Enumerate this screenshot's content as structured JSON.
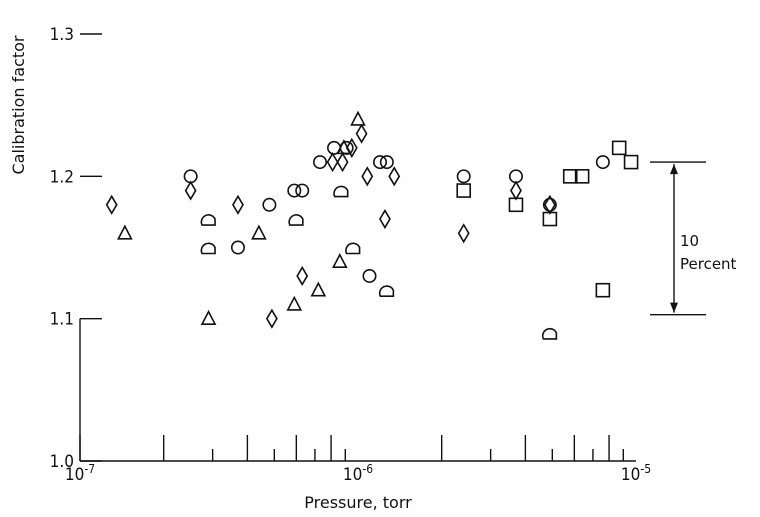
{
  "chart_data": {
    "type": "scatter",
    "xlabel": "Pressure, torr",
    "ylabel": "Calibration factor",
    "xscale": "log",
    "xlim": [
      1e-07,
      1e-05
    ],
    "ylim": [
      1.0,
      1.3
    ],
    "grid": false,
    "x_ticks": [
      {
        "value": 1e-07,
        "base": "10",
        "exp": "-7"
      },
      {
        "value": 1e-06,
        "base": "10",
        "exp": "-6"
      },
      {
        "value": 1e-05,
        "base": "10",
        "exp": "-5"
      }
    ],
    "y_ticks": [
      {
        "value": 1.0,
        "label": "1.0"
      },
      {
        "value": 1.1,
        "label": "1.1"
      },
      {
        "value": 1.2,
        "label": "1.2"
      },
      {
        "value": 1.3,
        "label": "1.3"
      }
    ],
    "series": [
      {
        "marker": "circle",
        "points": [
          [
            2.5e-07,
            1.2
          ],
          [
            3.7e-07,
            1.15
          ],
          [
            4.8e-07,
            1.18
          ],
          [
            5.9e-07,
            1.19
          ],
          [
            6.3e-07,
            1.19
          ],
          [
            7.3e-07,
            1.21
          ],
          [
            8.2e-07,
            1.22
          ],
          [
            9.1e-07,
            1.22
          ],
          [
            1.1e-06,
            1.13
          ],
          [
            1.2e-06,
            1.21
          ],
          [
            1.27e-06,
            1.21
          ],
          [
            2.4e-06,
            1.2
          ],
          [
            3.7e-06,
            1.2
          ],
          [
            4.9e-06,
            1.18
          ],
          [
            7.6e-06,
            1.21
          ]
        ]
      },
      {
        "marker": "diamond",
        "points": [
          [
            1.3e-07,
            1.18
          ],
          [
            2.5e-07,
            1.19
          ],
          [
            3.7e-07,
            1.18
          ],
          [
            4.9e-07,
            1.1
          ],
          [
            6.3e-07,
            1.13
          ],
          [
            8.1e-07,
            1.21
          ],
          [
            8.8e-07,
            1.21
          ],
          [
            9.5e-07,
            1.22
          ],
          [
            1.03e-06,
            1.23
          ],
          [
            1.08e-06,
            1.2
          ],
          [
            1.25e-06,
            1.17
          ],
          [
            1.35e-06,
            1.2
          ],
          [
            2.4e-06,
            1.16
          ],
          [
            3.7e-06,
            1.19
          ],
          [
            4.9e-06,
            1.18
          ]
        ]
      },
      {
        "marker": "triangle",
        "points": [
          [
            1.45e-07,
            1.16
          ],
          [
            2.9e-07,
            1.1
          ],
          [
            4.4e-07,
            1.16
          ],
          [
            5.9e-07,
            1.11
          ],
          [
            7.2e-07,
            1.12
          ],
          [
            8.6e-07,
            1.14
          ],
          [
            8.9e-07,
            1.22
          ],
          [
            1e-06,
            1.24
          ]
        ]
      },
      {
        "marker": "half-circle",
        "points": [
          [
            2.9e-07,
            1.17
          ],
          [
            2.9e-07,
            1.15
          ],
          [
            6e-07,
            1.17
          ],
          [
            8.7e-07,
            1.19
          ],
          [
            9.6e-07,
            1.15
          ],
          [
            1.27e-06,
            1.12
          ],
          [
            4.9e-06,
            1.09
          ]
        ]
      },
      {
        "marker": "square",
        "points": [
          [
            2.4e-06,
            1.19
          ],
          [
            3.7e-06,
            1.18
          ],
          [
            4.9e-06,
            1.17
          ],
          [
            5.8e-06,
            1.2
          ],
          [
            6.4e-06,
            1.2
          ],
          [
            7.6e-06,
            1.12
          ],
          [
            8.7e-06,
            1.22
          ],
          [
            9.6e-06,
            1.21
          ]
        ]
      }
    ],
    "annotation": {
      "line1": "10",
      "line2": "Percent",
      "y_top": 1.21,
      "y_bottom": 1.1
    }
  }
}
